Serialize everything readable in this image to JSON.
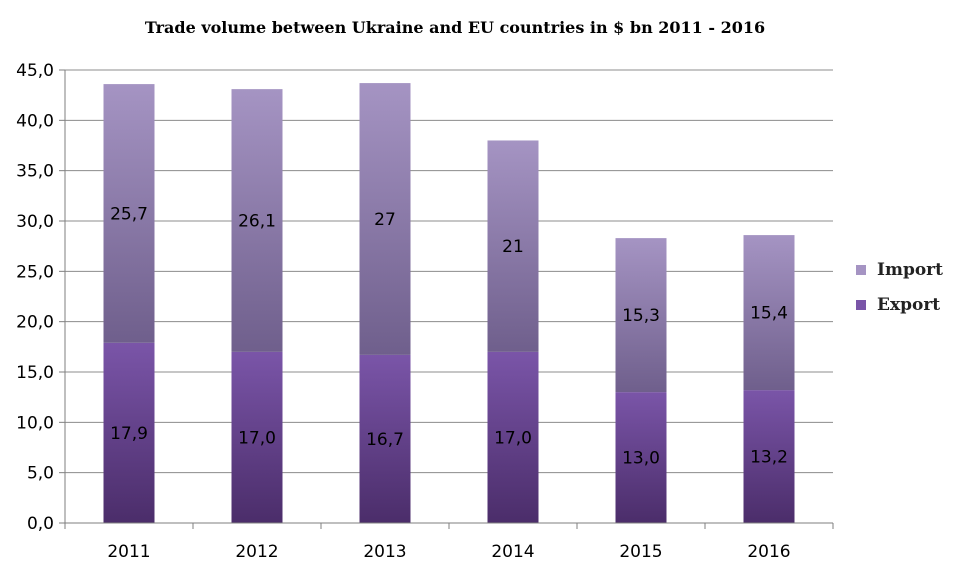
{
  "chart_data": {
    "type": "bar",
    "stacked": true,
    "title": "Trade volume between Ukraine and EU countries in $ bn 2011 - 2016",
    "xlabel": "",
    "ylabel": "",
    "categories": [
      "2011",
      "2012",
      "2013",
      "2014",
      "2015",
      "2016"
    ],
    "series": [
      {
        "name": "Export",
        "values": [
          17.9,
          17.0,
          16.7,
          17.0,
          13.0,
          13.2
        ],
        "labels": [
          "17,9",
          "17,0",
          "16,7",
          "17,0",
          "13,0",
          "13,2"
        ],
        "color_top": "#7a55a8",
        "color_bottom": "#4b2d6a"
      },
      {
        "name": "Import",
        "values": [
          25.7,
          26.1,
          27.0,
          21.0,
          15.3,
          15.4
        ],
        "labels": [
          "25,7",
          "26,1",
          "27",
          "21",
          "15,3",
          "15,4"
        ],
        "color_top": "#a594c3",
        "color_bottom": "#6f5f8c"
      }
    ],
    "ylim": [
      0,
      45
    ],
    "ytick_values": [
      0,
      5,
      10,
      15,
      20,
      25,
      30,
      35,
      40,
      45
    ],
    "ytick_labels": [
      "0,0",
      "5,0",
      "10,0",
      "15,0",
      "20,0",
      "25,0",
      "30,0",
      "35,0",
      "40,0",
      "45,0"
    ],
    "grid": true,
    "legend": {
      "position": "right",
      "entries": [
        "Import",
        "Export"
      ]
    }
  }
}
